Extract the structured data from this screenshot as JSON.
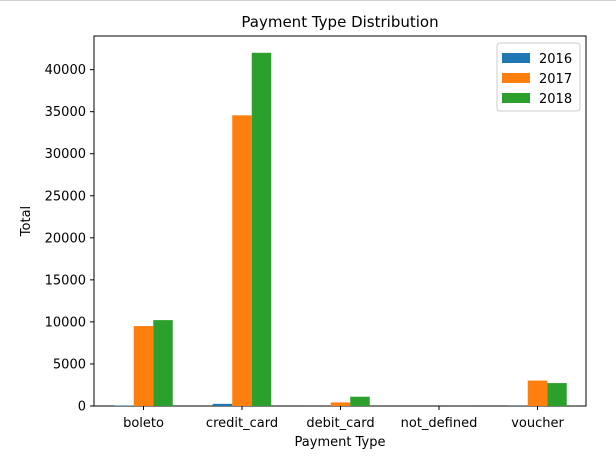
{
  "chart_data": {
    "type": "bar",
    "title": "Payment Type Distribution",
    "xlabel": "Payment Type",
    "ylabel": "Total",
    "categories": [
      "boleto",
      "credit_card",
      "debit_card",
      "not_defined",
      "voucher"
    ],
    "series": [
      {
        "name": "2016",
        "color": "#1f77b4",
        "values": [
          63,
          258,
          2,
          0,
          23
        ]
      },
      {
        "name": "2017",
        "color": "#ff7f0e",
        "values": [
          9508,
          34568,
          422,
          0,
          3027
        ]
      },
      {
        "name": "2018",
        "color": "#2ca02c",
        "values": [
          10213,
          42002,
          1105,
          3,
          2725
        ]
      }
    ],
    "ylim": [
      0,
      44000
    ],
    "yticks": [
      0,
      5000,
      10000,
      15000,
      20000,
      25000,
      30000,
      35000,
      40000
    ],
    "ytick_labels": [
      "0",
      "5000",
      "10000",
      "15000",
      "20000",
      "25000",
      "30000",
      "35000",
      "40000"
    ],
    "grid": false,
    "legend_position": "top-right"
  }
}
